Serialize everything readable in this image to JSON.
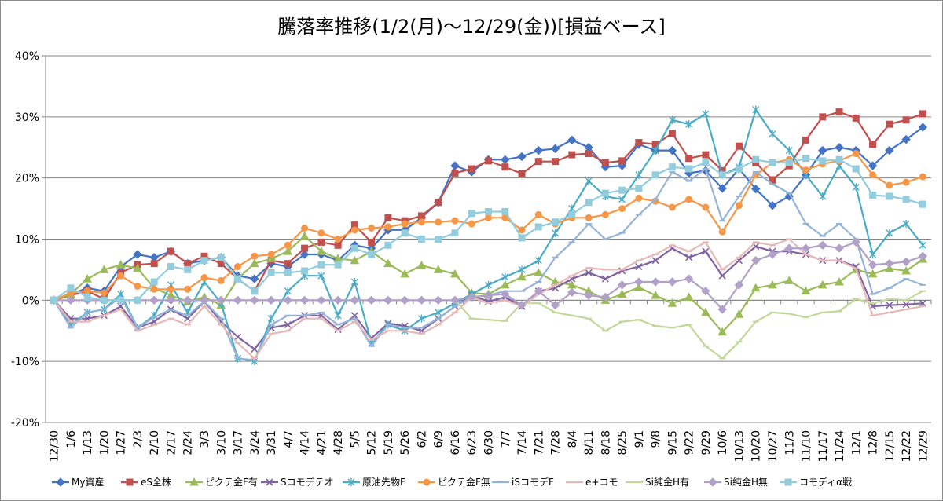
{
  "chart_data": {
    "type": "line",
    "title": "騰落率推移(1/2(月)～12/29(金))[損益ベース]",
    "ylim": [
      -20,
      40
    ],
    "yticks": [
      "-20%",
      "-10%",
      "0%",
      "10%",
      "20%",
      "30%",
      "40%"
    ],
    "ytick_values": [
      -20,
      -10,
      0,
      10,
      20,
      30,
      40
    ],
    "grid": true,
    "legend_position": "bottom",
    "categories": [
      "12/30",
      "1/6",
      "1/13",
      "1/20",
      "1/27",
      "2/3",
      "2/10",
      "2/17",
      "2/24",
      "3/3",
      "3/10",
      "3/17",
      "3/24",
      "3/31",
      "4/7",
      "4/14",
      "4/21",
      "4/28",
      "5/5",
      "5/12",
      "5/19",
      "5/26",
      "6/2",
      "6/9",
      "6/16",
      "6/23",
      "6/30",
      "7/7",
      "7/14",
      "7/21",
      "7/28",
      "8/4",
      "8/11",
      "8/18",
      "8/25",
      "9/1",
      "9/8",
      "9/15",
      "9/22",
      "9/29",
      "10/6",
      "10/13",
      "10/20",
      "10/27",
      "11/3",
      "11/10",
      "11/17",
      "11/24",
      "12/1",
      "12/8",
      "12/15",
      "12/22",
      "12/29"
    ],
    "series": [
      {
        "name": "My資産",
        "color": "#4472C4",
        "marker": "diamond",
        "values": [
          0,
          1,
          2,
          1.5,
          5.5,
          7.5,
          7,
          8,
          6,
          6.5,
          7,
          4,
          3.5,
          6,
          5.5,
          7.5,
          7.5,
          6.5,
          9,
          8.5,
          11.5,
          11.5,
          13.5,
          16,
          22,
          21,
          23,
          23,
          23.5,
          24.5,
          24.8,
          26.2,
          25,
          21.8,
          22,
          25.5,
          24.5,
          24.5,
          20.8,
          21.2,
          18.3,
          21.5,
          18.2,
          15.5,
          17,
          20.5,
          24.5,
          25,
          24.5,
          22,
          24.5,
          26.3,
          28.3
        ]
      },
      {
        "name": "eS全株",
        "color": "#C0504D",
        "marker": "square",
        "values": [
          0,
          0.8,
          1.5,
          0.2,
          4.5,
          5.8,
          6,
          8,
          6,
          7.2,
          6,
          3.5,
          1.5,
          6.5,
          6,
          8.5,
          9.5,
          9,
          12.3,
          9.5,
          13.5,
          13,
          13.8,
          16,
          20.8,
          21.5,
          22.8,
          21.8,
          20.7,
          22.7,
          22.7,
          23.8,
          24,
          22.5,
          22.8,
          25.8,
          25.5,
          27.3,
          23.2,
          23.8,
          21.2,
          25.2,
          22.5,
          19.7,
          22,
          26.2,
          30,
          30.8,
          29.8,
          25.5,
          28.8,
          29.5,
          30.5
        ]
      },
      {
        "name": "ピクテ金F有",
        "color": "#9BBB59",
        "marker": "triangle",
        "values": [
          0,
          1,
          3.5,
          5,
          5.8,
          5.2,
          2,
          0.8,
          -0.2,
          0.5,
          -0.8,
          3.5,
          6,
          6.8,
          8,
          10.5,
          8,
          6.8,
          6.5,
          8,
          6,
          4.3,
          5.7,
          5,
          4.3,
          1.2,
          1,
          2.5,
          3.8,
          4.5,
          3,
          2.5,
          1.5,
          0,
          1,
          2.1,
          0.8,
          -0.5,
          0.5,
          -2,
          -5.2,
          -2.3,
          2,
          2.5,
          3.2,
          1.5,
          2.5,
          3,
          5,
          4.3,
          5.2,
          4.8,
          6.7
        ]
      },
      {
        "name": "Sコモデテオ",
        "color": "#8064A2",
        "marker": "x",
        "values": [
          0,
          -3,
          -3,
          -2.5,
          -1,
          -4.5,
          -3.5,
          -1.5,
          -3,
          -0.2,
          -3.5,
          -6,
          -8,
          -4.5,
          -4,
          -2.5,
          -2.5,
          -4.8,
          -2.5,
          -6.2,
          -3.8,
          -4.2,
          -5,
          -3,
          -1,
          0.8,
          -0.2,
          0.5,
          -1,
          1.5,
          2,
          3.5,
          4.5,
          3.5,
          4.8,
          5.5,
          6.5,
          8.5,
          7,
          8,
          4,
          6.5,
          8.8,
          8,
          8,
          7.5,
          6.5,
          6.5,
          5.5,
          -1,
          -0.8,
          -0.7,
          -0.5
        ]
      },
      {
        "name": "原油先物F",
        "color": "#4BACC6",
        "marker": "asterisk",
        "values": [
          0,
          -4,
          -2,
          -1.5,
          1,
          -4.5,
          -2.5,
          2.5,
          -2,
          3,
          -0.5,
          -9.5,
          -10,
          -3,
          1.5,
          4,
          4,
          -2.5,
          3,
          -7,
          -4,
          -5,
          -3,
          -2,
          -0.5,
          1,
          2.5,
          3.8,
          5,
          6.5,
          11,
          15,
          19.5,
          17,
          16.5,
          20.5,
          24.5,
          29.5,
          28.8,
          30.5,
          20.5,
          21.8,
          31.2,
          27.2,
          24.5,
          20.5,
          17,
          22,
          18.5,
          7.5,
          11,
          12.5,
          9
        ]
      },
      {
        "name": "ピクテ金F無",
        "color": "#F79646",
        "marker": "circle",
        "values": [
          0,
          1.2,
          1.5,
          1.2,
          4,
          2.3,
          1.8,
          1.8,
          1.8,
          3.7,
          3.2,
          5.5,
          7.2,
          7.5,
          9,
          11.8,
          11,
          10,
          11.5,
          11.8,
          12,
          12.5,
          12.8,
          12.8,
          13,
          12.5,
          13.5,
          13.5,
          11.5,
          14,
          12.5,
          13.5,
          13.5,
          14,
          15,
          16.7,
          16.2,
          15.2,
          16.5,
          15.2,
          11.2,
          15.5,
          20.5,
          22.5,
          23,
          21.3,
          22.3,
          22.8,
          24,
          20.5,
          18.8,
          19.3,
          20.2
        ]
      },
      {
        "name": "iSコモデF",
        "color": "#95B3D7",
        "marker": "dash",
        "values": [
          0,
          -4.5,
          -2,
          -1.5,
          0.5,
          -4.5,
          -2.8,
          -1.5,
          -2.5,
          -0.2,
          -3,
          -9.5,
          -9.8,
          -4,
          -2.5,
          -2.5,
          -2,
          -4,
          -3,
          -7.5,
          -4,
          -4.5,
          -4.5,
          -3,
          -1,
          0.5,
          0.8,
          1.5,
          1.5,
          3,
          7,
          9.5,
          12.5,
          10,
          11,
          14,
          16.5,
          21,
          19.5,
          21.5,
          13,
          17,
          21,
          19,
          17.5,
          12.5,
          10.5,
          12.5,
          10,
          1,
          2,
          3.5,
          2.5
        ]
      },
      {
        "name": "e+コモ",
        "color": "#E6B9B8",
        "marker": "dash",
        "values": [
          0,
          -3.5,
          -3.5,
          -2.5,
          -1.5,
          -5,
          -4,
          -3,
          -4,
          -1,
          -4,
          -7,
          -9.5,
          -5.5,
          -5,
          -3,
          -3,
          -5,
          -3.5,
          -6.5,
          -5,
          -5,
          -5.5,
          -4,
          -2,
          0.5,
          -0.5,
          0,
          -1,
          1,
          2.5,
          4,
          5.3,
          5,
          5,
          6.5,
          7.5,
          9,
          8,
          9.5,
          5,
          7,
          9.5,
          9,
          10,
          7.5,
          6.5,
          6.5,
          5.2,
          -2.5,
          -2,
          -1.5,
          -1
        ]
      },
      {
        "name": "Si純金H有",
        "color": "#C4D79B",
        "marker": "dash",
        "values": [
          0,
          0,
          0,
          0,
          0,
          0,
          0,
          0,
          0,
          0,
          0,
          0,
          0,
          0,
          0,
          0,
          0,
          0,
          0,
          0,
          0,
          0,
          0,
          0,
          0,
          -3,
          -3.2,
          -3.4,
          -0.5,
          -0.5,
          -2,
          -2.5,
          -3,
          -5,
          -3.5,
          -3.2,
          -4.2,
          -4.5,
          -4,
          -7.5,
          -9.5,
          -6.8,
          -3.5,
          -2,
          -2.2,
          -2.8,
          -2,
          -1.8,
          0.2,
          -0.5,
          0.2,
          0,
          1.5
        ]
      },
      {
        "name": "Si純金H無",
        "color": "#B1A0C7",
        "marker": "diamond",
        "values": [
          0,
          0,
          0,
          0,
          0,
          0,
          0,
          0,
          0,
          0,
          0,
          0,
          0,
          0,
          0,
          0,
          0,
          0,
          0,
          0,
          0,
          0,
          0,
          0,
          0,
          0.5,
          0.8,
          1,
          -0.8,
          1.5,
          -0.8,
          1.3,
          0.8,
          0.5,
          2.5,
          3,
          3,
          3,
          3.5,
          1.5,
          -1.5,
          2.5,
          6.5,
          7.5,
          8.5,
          8.5,
          9,
          8.5,
          9.5,
          5.8,
          6,
          6.3,
          7.2
        ]
      },
      {
        "name": "コモディα戦",
        "color": "#93CDDD",
        "marker": "square",
        "values": [
          0,
          2,
          0.5,
          0,
          0,
          0,
          3,
          5.5,
          5,
          6.5,
          7,
          3.5,
          1.5,
          4.5,
          4.5,
          4.8,
          5.8,
          5.8,
          8.5,
          7.5,
          9,
          11,
          10,
          10,
          11,
          14.2,
          14.5,
          14.5,
          10.2,
          12,
          12.8,
          14,
          16,
          17.5,
          18,
          18.3,
          20.5,
          21.8,
          21.5,
          22.5,
          20.5,
          21.5,
          23,
          22.5,
          22.5,
          23.2,
          22.8,
          23,
          21.5,
          17.2,
          17,
          16.5,
          15.7
        ]
      }
    ]
  }
}
